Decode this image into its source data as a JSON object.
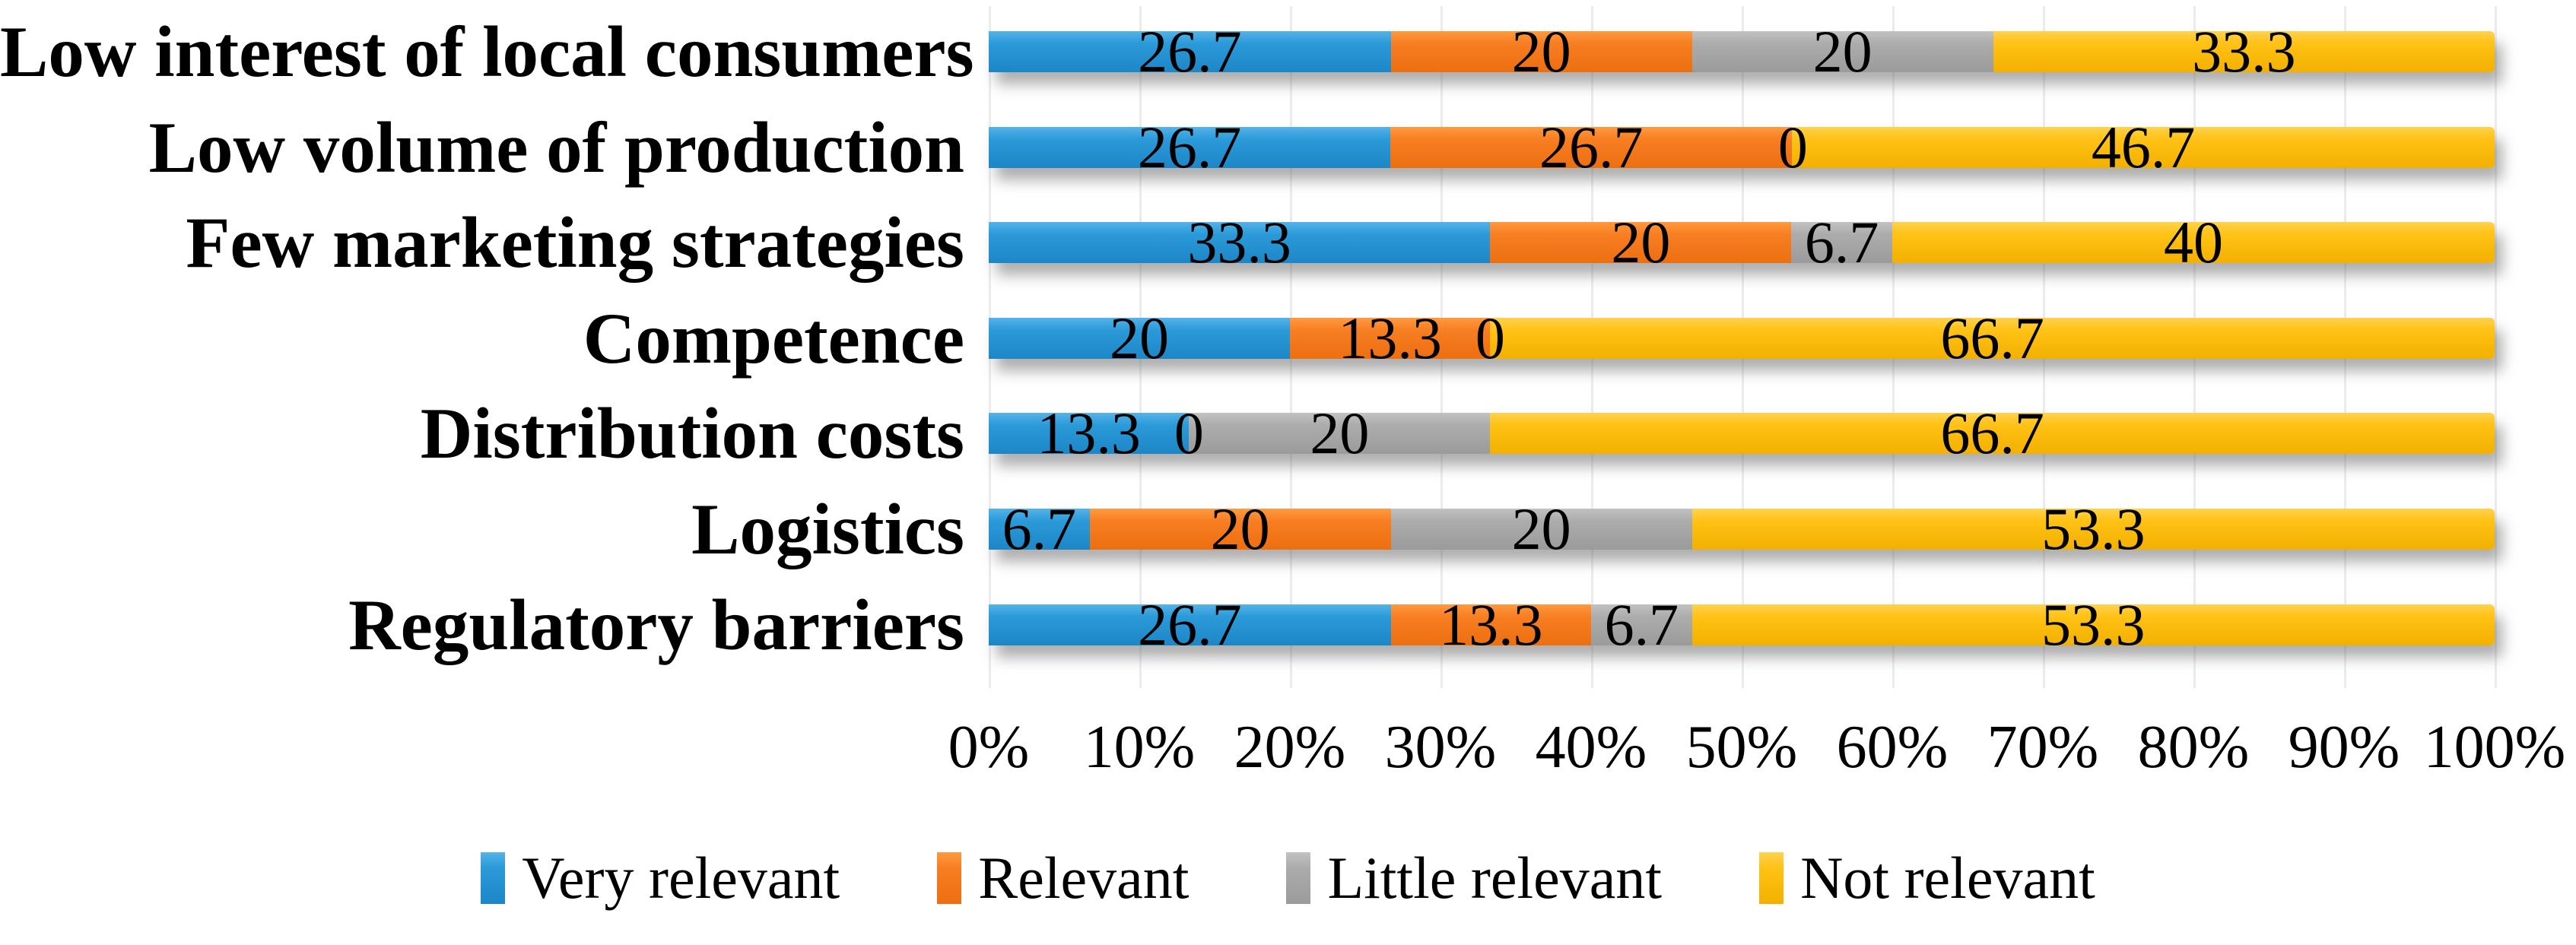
{
  "chart_data": {
    "type": "bar",
    "orientation": "horizontal",
    "stacked": true,
    "unit": "percent",
    "title": "",
    "xlabel": "",
    "ylabel": "",
    "categories": [
      "Low interest of local consumers",
      "Low volume of production",
      "Few marketing strategies",
      "Competence",
      "Distribution costs",
      "Logistics",
      "Regulatory barriers"
    ],
    "series": [
      {
        "name": "Very relevant",
        "color": "#2b9ad8",
        "values": [
          26.7,
          26.7,
          33.3,
          20.0,
          13.3,
          6.7,
          26.7
        ]
      },
      {
        "name": "Relevant",
        "color": "#f87e22",
        "values": [
          20.0,
          26.7,
          20.0,
          13.3,
          0.0,
          20.0,
          13.3
        ]
      },
      {
        "name": "Little relevant",
        "color": "#acacac",
        "values": [
          20.0,
          0.0,
          6.7,
          0.0,
          20.0,
          20.0,
          6.7
        ]
      },
      {
        "name": "Not relevant",
        "color": "#ffc215",
        "values": [
          33.3,
          46.7,
          40.0,
          66.7,
          66.7,
          53.3,
          53.3
        ]
      }
    ],
    "value_labels": [
      [
        "26.7",
        "20",
        "20",
        "33.3"
      ],
      [
        "26.7",
        "26.7",
        "0",
        "46.7"
      ],
      [
        "33.3",
        "20",
        "6.7",
        "40"
      ],
      [
        "20",
        "13.3",
        "0",
        "66.7"
      ],
      [
        "13.3",
        "0",
        "20",
        "66.7"
      ],
      [
        "6.7",
        "20",
        "20",
        "53.3"
      ],
      [
        "26.7",
        "13.3",
        "6.7",
        "53.3"
      ]
    ],
    "x_axis": {
      "min": 0,
      "max": 100,
      "tick_labels": [
        "0%",
        "10%",
        "20%",
        "30%",
        "40%",
        "50%",
        "60%",
        "70%",
        "80%",
        "90%",
        "100%"
      ]
    },
    "legend": {
      "position": "bottom",
      "entries": [
        {
          "label": "Very relevant",
          "color": "#2b9ad8"
        },
        {
          "label": "Relevant",
          "color": "#f87e22"
        },
        {
          "label": "Little relevant",
          "color": "#acacac"
        },
        {
          "label": "Not relevant",
          "color": "#ffc215"
        }
      ]
    },
    "grid": true,
    "background": "#ffffff",
    "label_text_color": "#000000"
  }
}
